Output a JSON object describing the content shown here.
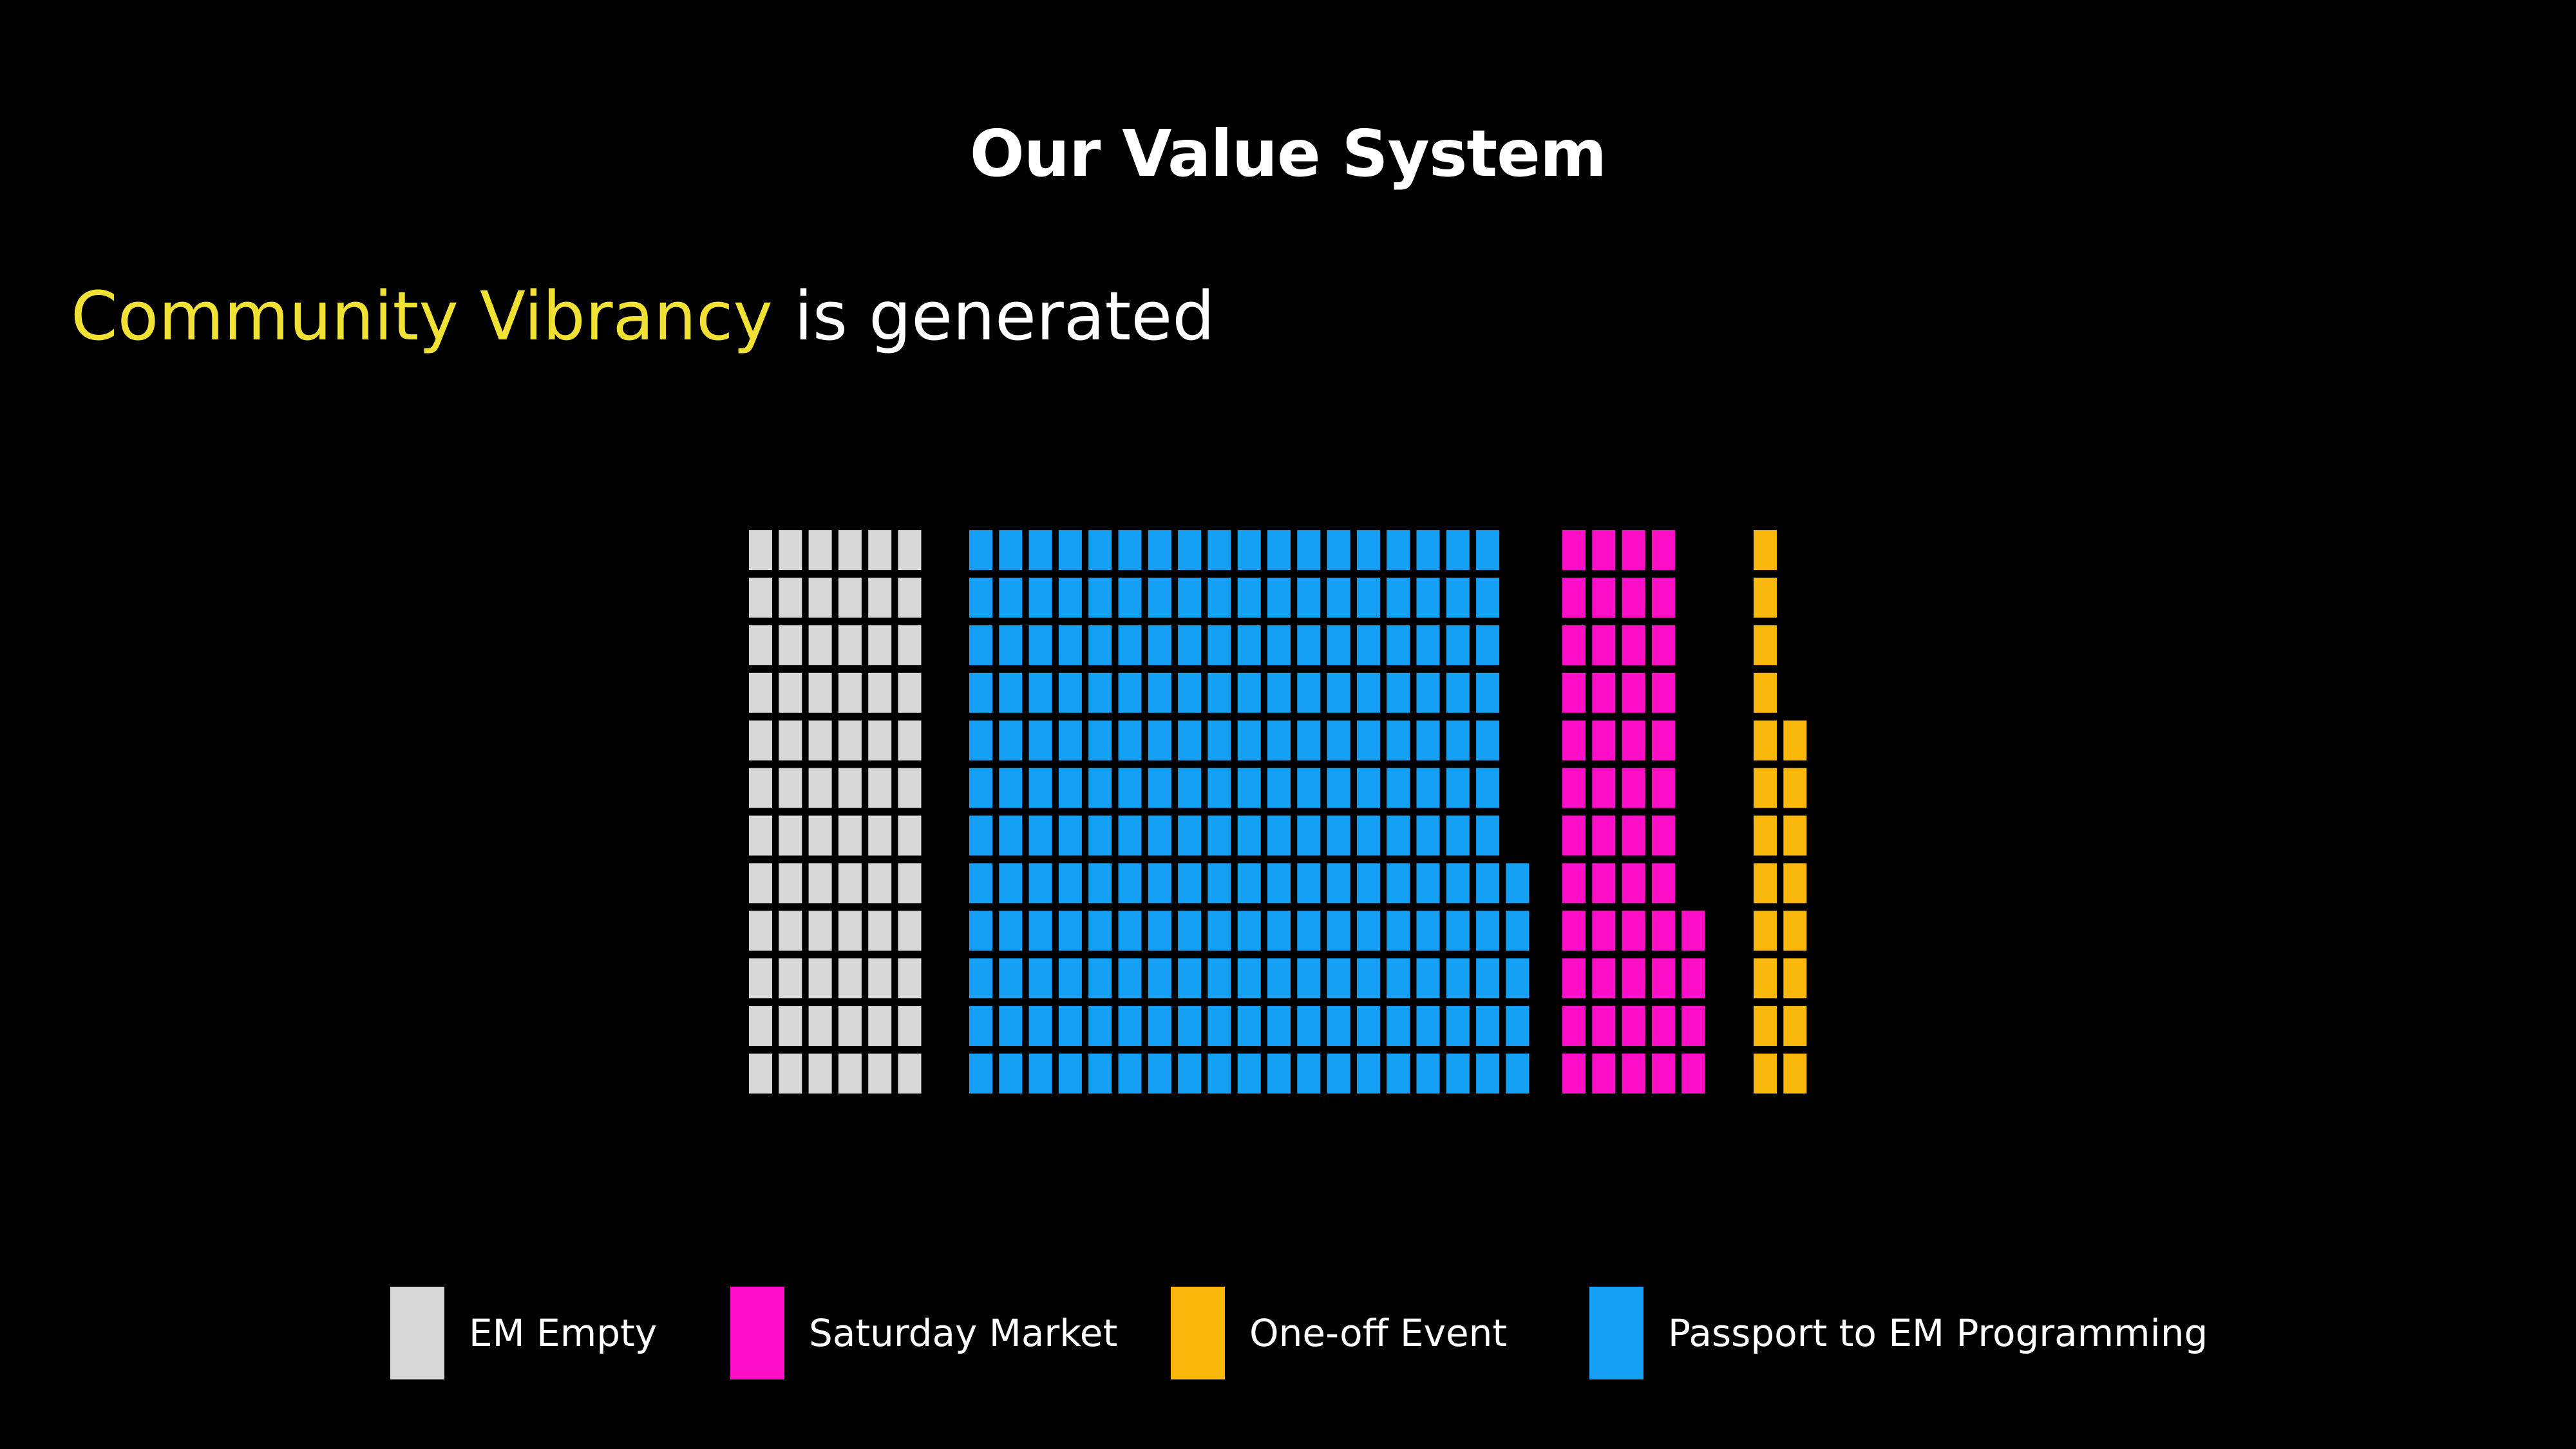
{
  "title": "Our Value System",
  "subtitle": {
    "highlight": "Community Vibrancy",
    "rest": "is generated"
  },
  "colors": {
    "background": "#000000",
    "highlight": "#f2e135",
    "em_empty": "#d8d8d8",
    "passport": "#14a0f5",
    "saturday": "#ff10c8",
    "one_off": "#fbb80c"
  },
  "chart_data": {
    "type": "waffle",
    "unit": "one square",
    "rows": 12,
    "series": [
      {
        "name": "EM Empty",
        "color": "#d8d8d8",
        "value": 72,
        "column_heights": [
          12,
          12,
          12,
          12,
          12,
          12
        ]
      },
      {
        "name": "Passport to EM Programming",
        "color": "#14a0f5",
        "value": 221,
        "column_heights": [
          12,
          12,
          12,
          12,
          12,
          12,
          12,
          12,
          12,
          12,
          12,
          12,
          12,
          12,
          12,
          12,
          12,
          12,
          5
        ]
      },
      {
        "name": "Saturday Market",
        "color": "#ff10c8",
        "value": 52,
        "column_heights": [
          12,
          12,
          12,
          12,
          4
        ]
      },
      {
        "name": "One-off Event",
        "color": "#fbb80c",
        "value": 20,
        "column_heights": [
          12,
          8
        ]
      }
    ]
  },
  "legend": [
    {
      "label": "EM Empty",
      "color": "#d8d8d8"
    },
    {
      "label": "Saturday Market",
      "color": "#ff10c8"
    },
    {
      "label": "One-off Event",
      "color": "#fbb80c"
    },
    {
      "label": "Passport to EM Programming",
      "color": "#14a0f5"
    }
  ]
}
